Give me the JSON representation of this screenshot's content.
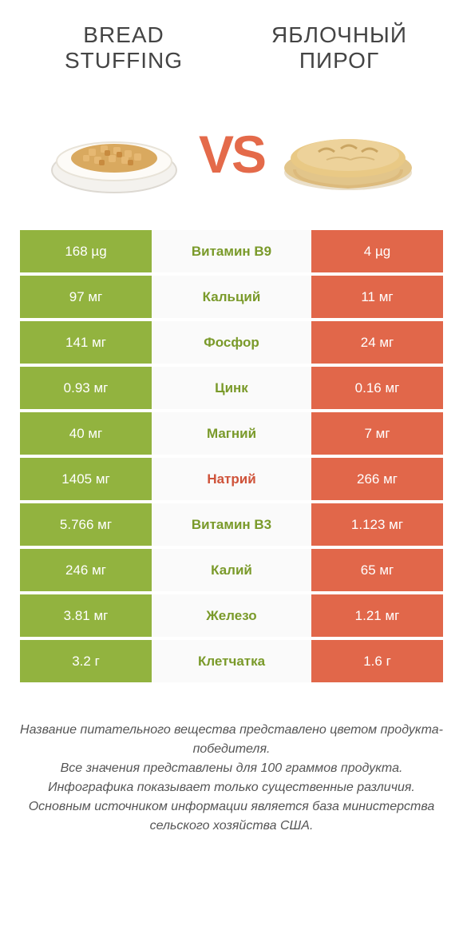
{
  "titles": {
    "left": "BREAD STUFFING",
    "right": "ЯБЛОЧНЫЙ ПИРОГ"
  },
  "vs": "VS",
  "colors": {
    "green": "#92b33f",
    "orange": "#e1674a",
    "mid_bg": "#fafafa",
    "nutrient_green": "#7a9a2a",
    "nutrient_orange": "#cf533a",
    "background": "#ffffff"
  },
  "nutrients": [
    {
      "left": "168 µg",
      "name": "Витамин B9",
      "right": "4 µg",
      "winner": "left"
    },
    {
      "left": "97 мг",
      "name": "Кальций",
      "right": "11 мг",
      "winner": "left"
    },
    {
      "left": "141 мг",
      "name": "Фосфор",
      "right": "24 мг",
      "winner": "left"
    },
    {
      "left": "0.93 мг",
      "name": "Цинк",
      "right": "0.16 мг",
      "winner": "left"
    },
    {
      "left": "40 мг",
      "name": "Магний",
      "right": "7 мг",
      "winner": "left"
    },
    {
      "left": "1405 мг",
      "name": "Натрий",
      "right": "266 мг",
      "winner": "right"
    },
    {
      "left": "5.766 мг",
      "name": "Витамин B3",
      "right": "1.123 мг",
      "winner": "left"
    },
    {
      "left": "246 мг",
      "name": "Калий",
      "right": "65 мг",
      "winner": "left"
    },
    {
      "left": "3.81 мг",
      "name": "Железо",
      "right": "1.21 мг",
      "winner": "left"
    },
    {
      "left": "3.2 г",
      "name": "Клетчатка",
      "right": "1.6 г",
      "winner": "left"
    }
  ],
  "footer": [
    "Название питательного вещества представлено цветом продукта-победителя.",
    "Все значения представлены для 100 граммов продукта.",
    "Инфографика показывает только существенные различия.",
    "Основным источником информации является база министерства сельского хозяйства США."
  ]
}
